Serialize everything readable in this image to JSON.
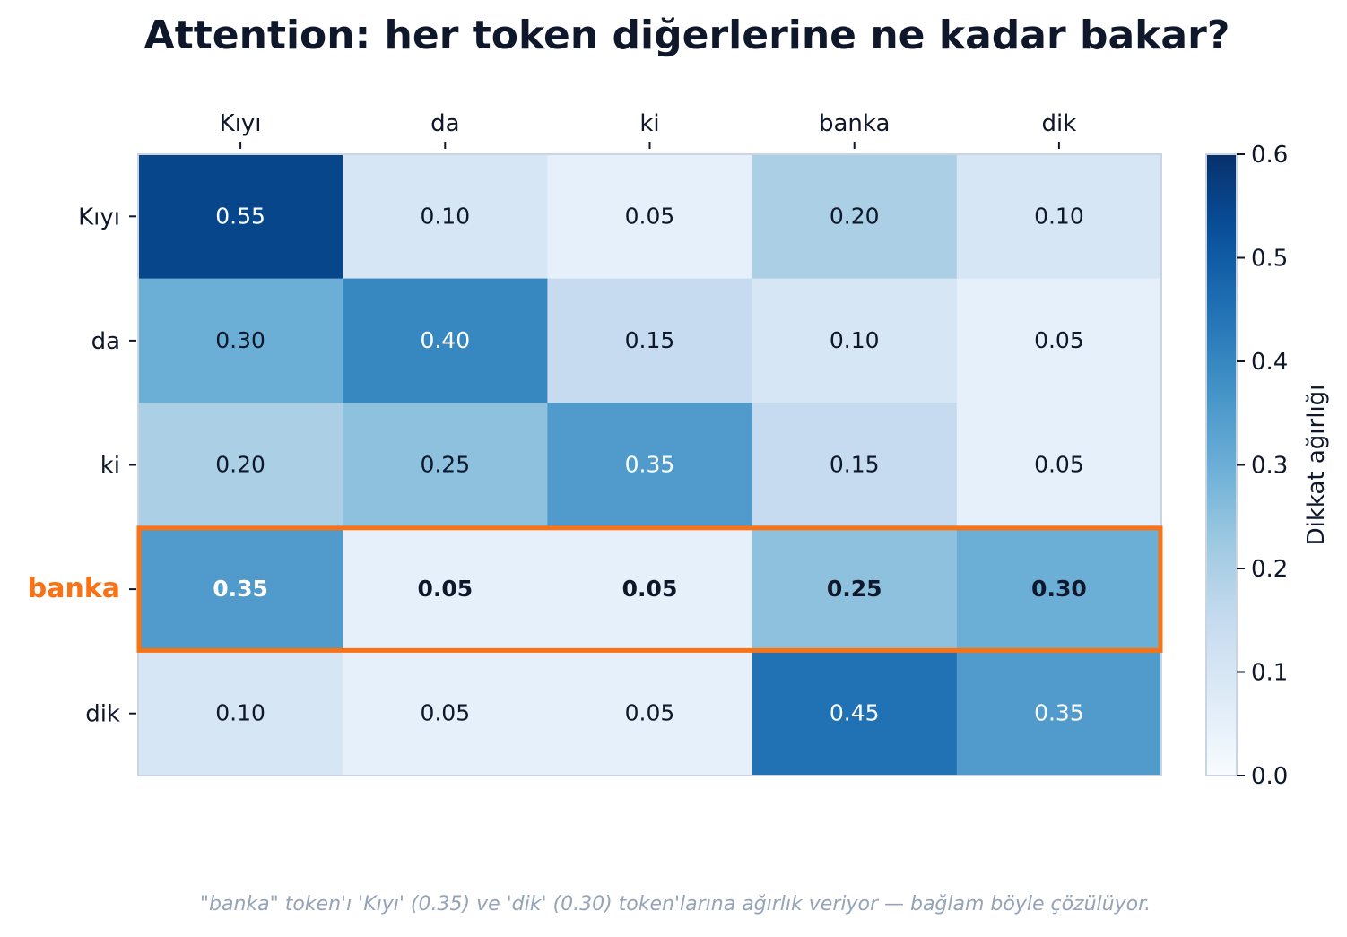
{
  "chart_data": {
    "type": "heatmap",
    "title": "Attention: her token diğerlerine ne kadar bakar?",
    "x_categories": [
      "Kıyı",
      "da",
      "ki",
      "banka",
      "dik"
    ],
    "y_categories": [
      "Kıyı",
      "da",
      "ki",
      "banka",
      "dik"
    ],
    "values": [
      [
        0.55,
        0.1,
        0.05,
        0.2,
        0.1
      ],
      [
        0.3,
        0.4,
        0.15,
        0.1,
        0.05
      ],
      [
        0.2,
        0.25,
        0.35,
        0.15,
        0.05
      ],
      [
        0.35,
        0.05,
        0.05,
        0.25,
        0.3
      ],
      [
        0.1,
        0.05,
        0.05,
        0.45,
        0.35
      ]
    ],
    "highlight_row": "banka",
    "highlight_color": "#f97316",
    "colormap": "Blues",
    "colorbar_label": "Dikkat ağırlığı",
    "colorbar_range": [
      0.0,
      0.6
    ],
    "colorbar_ticks": [
      "0.0",
      "0.1",
      "0.2",
      "0.3",
      "0.4",
      "0.5",
      "0.6"
    ],
    "x_axis_position": "top"
  },
  "caption": "\"banka\" token'ı 'Kıyı' (0.35) ve 'dik' (0.30) token'larına ağırlık veriyor — bağlam böyle çözülüyor."
}
